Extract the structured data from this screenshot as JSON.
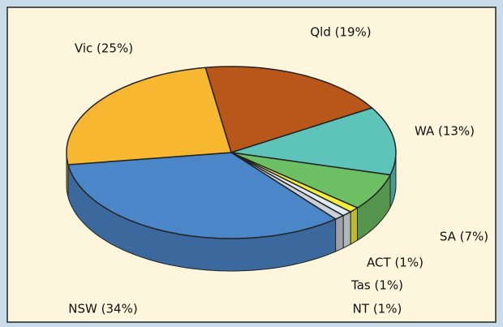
{
  "chart_data": {
    "type": "pie3d",
    "values": [
      19,
      13,
      7,
      1,
      1,
      1,
      34,
      25
    ],
    "value_labels": [
      "Qld (19%)",
      "WA (13%)",
      "SA (7%)",
      "ACT (1%)",
      "Tas (1%)",
      "NT (1%)",
      "NSW (34%)",
      "Vic (25%)"
    ],
    "colors": [
      "#b9561a",
      "#5ec4b9",
      "#6dbf63",
      "#f4ee3a",
      "#dfeaf0",
      "#c8d0d8",
      "#4b86c9",
      "#f8b730"
    ]
  }
}
